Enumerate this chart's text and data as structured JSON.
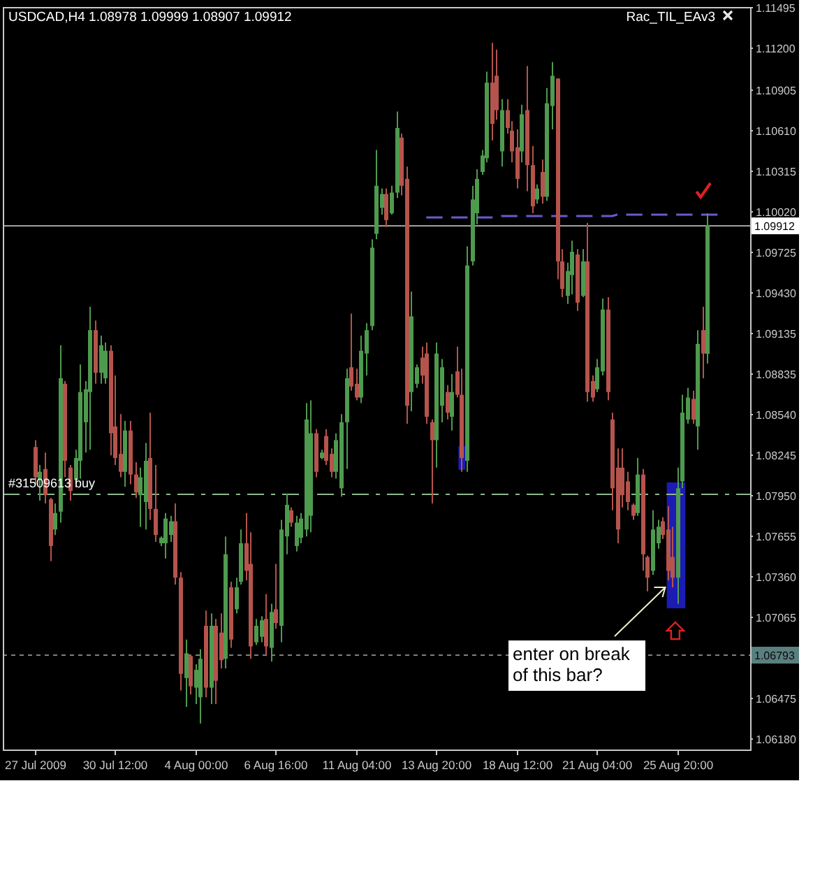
{
  "chart_data": {
    "type": "candlestick",
    "title": "USDCAD,H4 1.08978 1.09999 1.08907 1.09912",
    "annotations": [
      "Rac_TIL_EAv3",
      "enter on break of this bar?"
    ],
    "categories": [
      "27 Jul 2009",
      null,
      null,
      null,
      null,
      null,
      null,
      null,
      null,
      null,
      null,
      null,
      null,
      null,
      null,
      null,
      "30 Jul 12:00",
      null,
      null,
      null,
      null,
      null,
      null,
      null,
      null,
      null,
      null,
      null,
      null,
      null,
      null,
      null,
      "4 Aug 00:00",
      null,
      null,
      null,
      null,
      null,
      null,
      null,
      null,
      null,
      null,
      null,
      null,
      null,
      null,
      null,
      "6 Aug 16:00",
      null,
      null,
      null,
      null,
      null,
      null,
      null,
      null,
      null,
      null,
      null,
      null,
      null,
      null,
      null,
      "11 Aug 04:00",
      null,
      null,
      null,
      null,
      null,
      null,
      null,
      null,
      null,
      null,
      null,
      null,
      null,
      null,
      null,
      "13 Aug 20:00",
      null,
      null,
      null,
      null,
      null,
      null,
      null,
      null,
      null,
      null,
      null,
      null,
      null,
      null,
      null,
      "18 Aug 12:00",
      null,
      null,
      null,
      null,
      null,
      null,
      null,
      null,
      null,
      null,
      null,
      null,
      null,
      null,
      null,
      "21 Aug 04:00",
      null,
      null,
      null,
      null,
      null,
      null,
      null,
      null,
      null,
      null,
      null,
      null,
      null,
      null,
      null,
      "25 Aug 20:00",
      null,
      null,
      null,
      null,
      null,
      null,
      null,
      null,
      null,
      null,
      null,
      null,
      null,
      null
    ],
    "ohlc": [
      [
        1.083,
        1.0835,
        1.0803,
        1.0808
      ],
      [
        1.0806,
        1.0817,
        1.0791,
        1.0812
      ],
      [
        1.0814,
        1.0826,
        1.0789,
        1.0795
      ],
      [
        1.0792,
        1.0793,
        1.0747,
        1.0758
      ],
      [
        1.077,
        1.0789,
        1.0766,
        1.0782
      ],
      [
        1.0783,
        1.0904,
        1.0775,
        1.088
      ],
      [
        1.0876,
        1.0878,
        1.0808,
        1.082
      ],
      [
        1.0815,
        1.0817,
        1.0791,
        1.0798
      ],
      [
        1.0806,
        1.0828,
        1.0803,
        1.0822
      ],
      [
        1.082,
        1.089,
        1.0807,
        1.087
      ],
      [
        1.0848,
        1.0878,
        1.0826,
        1.0872
      ],
      [
        1.087,
        1.0932,
        1.0828,
        1.0915
      ],
      [
        1.0915,
        1.0922,
        1.0876,
        1.0884
      ],
      [
        1.0884,
        1.0911,
        1.0876,
        1.0904
      ],
      [
        1.088,
        1.0906,
        1.0876,
        1.09
      ],
      [
        1.09,
        1.0904,
        1.0824,
        1.084
      ],
      [
        1.0845,
        1.0882,
        1.0817,
        1.0822
      ],
      [
        1.0825,
        1.0854,
        1.0808,
        1.0812
      ],
      [
        1.0812,
        1.0849,
        1.0801,
        1.0842
      ],
      [
        1.0842,
        1.0849,
        1.0803,
        1.081
      ],
      [
        1.081,
        1.0819,
        1.0793,
        1.0797
      ],
      [
        1.0795,
        1.0815,
        1.0772,
        1.0808
      ],
      [
        1.079,
        1.0833,
        1.077,
        1.082
      ],
      [
        1.0822,
        1.0855,
        1.0777,
        1.0785
      ],
      [
        1.0785,
        1.0817,
        1.0761,
        1.0766
      ],
      [
        1.076,
        1.0765,
        1.0758,
        1.0764
      ],
      [
        1.076,
        1.0782,
        1.0749,
        1.0778
      ],
      [
        1.0766,
        1.078,
        1.0761,
        1.0776
      ],
      [
        1.0776,
        1.0789,
        1.073,
        1.0735
      ],
      [
        1.0735,
        1.0739,
        1.0653,
        1.0665
      ],
      [
        1.0662,
        1.069,
        1.0641,
        1.068
      ],
      [
        1.0678,
        1.0679,
        1.065,
        1.0656
      ],
      [
        1.0655,
        1.0672,
        1.0643,
        1.0668
      ],
      [
        1.0648,
        1.0683,
        1.0629,
        1.0676
      ],
      [
        1.07,
        1.0711,
        1.0648,
        1.0655
      ],
      [
        1.0655,
        1.0709,
        1.0643,
        1.07
      ],
      [
        1.07,
        1.0705,
        1.0643,
        1.066
      ],
      [
        1.0695,
        1.0709,
        1.0669,
        1.0675
      ],
      [
        1.0676,
        1.0765,
        1.0669,
        1.0752
      ],
      [
        1.0728,
        1.0732,
        1.0684,
        1.069
      ],
      [
        1.0712,
        1.0735,
        1.0709,
        1.0728
      ],
      [
        1.0732,
        1.077,
        1.073,
        1.076
      ],
      [
        1.076,
        1.0782,
        1.0733,
        1.074
      ],
      [
        1.0745,
        1.0768,
        1.0676,
        1.0685
      ],
      [
        1.0688,
        1.0705,
        1.0686,
        1.07
      ],
      [
        1.0692,
        1.0707,
        1.0688,
        1.0704
      ],
      [
        1.0705,
        1.0723,
        1.0679,
        1.0685
      ],
      [
        1.0684,
        1.0716,
        1.0674,
        1.071
      ],
      [
        1.0712,
        1.0745,
        1.0698,
        1.0702
      ],
      [
        1.07,
        1.0777,
        1.0688,
        1.077
      ],
      [
        1.0765,
        1.0796,
        1.0752,
        1.0788
      ],
      [
        1.0784,
        1.0786,
        1.0772,
        1.0775
      ],
      [
        1.0758,
        1.078,
        1.0754,
        1.0775
      ],
      [
        1.0764,
        1.0782,
        1.076,
        1.0778
      ],
      [
        1.077,
        1.0862,
        1.0765,
        1.085
      ],
      [
        1.078,
        1.0864,
        1.0768,
        1.084
      ],
      [
        1.084,
        1.0843,
        1.0808,
        1.0812
      ],
      [
        1.0822,
        1.0828,
        1.0821,
        1.0826
      ],
      [
        1.0838,
        1.0843,
        1.0817,
        1.082
      ],
      [
        1.0825,
        1.0829,
        1.0808,
        1.0812
      ],
      [
        1.0812,
        1.084,
        1.0807,
        1.0835
      ],
      [
        1.08,
        1.0854,
        1.0794,
        1.0848
      ],
      [
        1.0848,
        1.0887,
        1.0814,
        1.088
      ],
      [
        1.0888,
        1.0927,
        1.0871,
        1.0874
      ],
      [
        1.0876,
        1.0887,
        1.0864,
        1.0866
      ],
      [
        1.0866,
        1.0911,
        1.0862,
        1.09
      ],
      [
        1.0898,
        1.092,
        1.0882,
        1.0915
      ],
      [
        1.0918,
        1.0981,
        1.0915,
        1.0975
      ],
      [
        1.0985,
        1.1046,
        1.0981,
        1.102
      ],
      [
        1.1004,
        1.1018,
        1.0999,
        1.1014
      ],
      [
        1.1014,
        1.1018,
        1.099,
        1.0995
      ],
      [
        1.1,
        1.102,
        1.0999,
        1.1015
      ],
      [
        1.1015,
        1.1074,
        1.1011,
        1.1062
      ],
      [
        1.1055,
        1.1058,
        1.1013,
        1.102
      ],
      [
        1.1025,
        1.1034,
        1.0847,
        1.086
      ],
      [
        1.087,
        1.0943,
        1.0856,
        1.0925
      ],
      [
        1.0876,
        1.089,
        1.0873,
        1.0888
      ],
      [
        1.0895,
        1.0903,
        1.0876,
        1.0882
      ],
      [
        1.0898,
        1.0906,
        1.0847,
        1.0852
      ],
      [
        1.0848,
        1.085,
        1.0789,
        1.0835
      ],
      [
        1.0835,
        1.0906,
        1.0815,
        1.0898
      ],
      [
        1.086,
        1.0894,
        1.0848,
        1.0888
      ],
      [
        1.087,
        1.0875,
        1.085,
        1.0855
      ],
      [
        1.0852,
        1.0883,
        1.0842,
        1.087
      ],
      [
        1.0885,
        1.0903,
        1.0866,
        1.0868
      ],
      [
        1.0868,
        1.0887,
        1.0812,
        1.0822
      ],
      [
        1.082,
        1.0976,
        1.0812,
        1.0962
      ],
      [
        1.0965,
        1.102,
        1.0962,
        1.101
      ],
      [
        1.1,
        1.1032,
        1.0992,
        1.1025
      ],
      [
        1.103,
        1.1046,
        1.1028,
        1.1042
      ],
      [
        1.104,
        1.1103,
        1.1037,
        1.1095
      ],
      [
        1.1095,
        1.1124,
        1.1053,
        1.1065
      ],
      [
        1.11,
        1.1119,
        1.1068,
        1.1075
      ],
      [
        1.1045,
        1.1083,
        1.1034,
        1.1075
      ],
      [
        1.1075,
        1.1083,
        1.1058,
        1.1062
      ],
      [
        1.106,
        1.1067,
        1.1037,
        1.1045
      ],
      [
        1.1048,
        1.1061,
        1.1018,
        1.1025
      ],
      [
        1.1045,
        1.1079,
        1.1037,
        1.1072
      ],
      [
        1.1075,
        1.1107,
        1.1016,
        1.1035
      ],
      [
        1.1035,
        1.1049,
        1.1,
        1.1005
      ],
      [
        1.101,
        1.1021,
        1.1007,
        1.1018
      ],
      [
        1.103,
        1.1039,
        1.1007,
        1.1012
      ],
      [
        1.1012,
        1.1091,
        1.1009,
        1.108
      ],
      [
        1.1078,
        1.111,
        1.1061,
        1.11
      ],
      [
        1.1098,
        1.1098,
        1.0952,
        1.0965
      ],
      [
        1.0965,
        1.0974,
        1.0939,
        1.0945
      ],
      [
        1.094,
        1.0964,
        1.0934,
        1.0958
      ],
      [
        1.0955,
        1.098,
        1.0941,
        1.0972
      ],
      [
        1.097,
        1.0974,
        1.0929,
        1.0935
      ],
      [
        1.094,
        1.0974,
        1.0939,
        1.0965
      ],
      [
        1.0965,
        1.0993,
        1.0863,
        1.087
      ],
      [
        1.0878,
        1.0882,
        1.0863,
        1.0866
      ],
      [
        1.0872,
        1.0894,
        1.087,
        1.0888
      ],
      [
        1.0885,
        1.0938,
        1.0882,
        1.093
      ],
      [
        1.093,
        1.0939,
        1.0864,
        1.087
      ],
      [
        1.085,
        1.0855,
        1.0784,
        1.08
      ],
      [
        1.0815,
        1.0829,
        1.076,
        1.077
      ],
      [
        1.0815,
        1.0829,
        1.0786,
        1.0795
      ],
      [
        1.0805,
        1.0812,
        1.0784,
        1.079
      ],
      [
        1.0788,
        1.0789,
        1.0777,
        1.078
      ],
      [
        1.0782,
        1.0822,
        1.078,
        1.081
      ],
      [
        1.081,
        1.0814,
        1.074,
        1.0752
      ],
      [
        1.075,
        1.0751,
        1.0725,
        1.0735
      ],
      [
        1.074,
        1.0784,
        1.0737,
        1.077
      ],
      [
        1.076,
        1.0777,
        1.0756,
        1.0772
      ],
      [
        1.0776,
        1.0779,
        1.0763,
        1.0766
      ],
      [
        1.077,
        1.0787,
        1.0733,
        1.074
      ],
      [
        1.075,
        1.0772,
        1.0728,
        1.0735
      ],
      [
        1.0735,
        1.0815,
        1.0716,
        1.08
      ],
      [
        1.0805,
        1.0868,
        1.08,
        1.0855
      ],
      [
        1.085,
        1.0873,
        1.0847,
        1.0866
      ],
      [
        1.0865,
        1.0871,
        1.0847,
        1.085
      ],
      [
        1.0845,
        1.0915,
        1.0828,
        1.0905
      ],
      [
        1.0915,
        1.0932,
        1.088,
        1.0898
      ],
      [
        1.08978,
        1.09999,
        1.08907,
        1.09912
      ],
      null,
      null,
      null,
      null,
      null,
      null,
      null,
      null
    ],
    "colors": [
      "#b5544c",
      "#4e9a4e",
      "#b5544c",
      "#b5544c",
      "#4e9a4e",
      "#4e9a4e",
      "#b5544c",
      "#b5544c",
      "#4e9a4e",
      "#4e9a4e",
      "#4e9a4e",
      "#4e9a4e",
      "#b5544c",
      "#4e9a4e",
      "#4e9a4e",
      "#b5544c",
      "#b5544c",
      "#b5544c",
      "#4e9a4e",
      "#b5544c",
      "#b5544c",
      "#4e9a4e",
      "#4e9a4e",
      "#b5544c",
      "#b5544c",
      "#4e9a4e",
      "#4e9a4e",
      "#4e9a4e",
      "#b5544c",
      "#b5544c",
      "#4e9a4e",
      "#b5544c",
      "#4e9a4e",
      "#4e9a4e",
      "#b5544c",
      "#4e9a4e",
      "#b5544c",
      "#b5544c",
      "#4e9a4e",
      "#b5544c",
      "#4e9a4e",
      "#4e9a4e",
      "#b5544c",
      "#b5544c",
      "#4e9a4e",
      "#4e9a4e",
      "#b5544c",
      "#4e9a4e",
      "#b5544c",
      "#4e9a4e",
      "#4e9a4e",
      "#b5544c",
      "#4e9a4e",
      "#4e9a4e",
      "#4e9a4e",
      "#4e9a4e",
      "#b5544c",
      "#4e9a4e",
      "#b5544c",
      "#b5544c",
      "#4e9a4e",
      "#4e9a4e",
      "#4e9a4e",
      "#b5544c",
      "#b5544c",
      "#4e9a4e",
      "#4e9a4e",
      "#4e9a4e",
      "#4e9a4e",
      "#4e9a4e",
      "#b5544c",
      "#4e9a4e",
      "#4e9a4e",
      "#b5544c",
      "#b5544c",
      "#4e9a4e",
      "#4e9a4e",
      "#b5544c",
      "#b5544c",
      "#b5544c",
      "#4e9a4e",
      "#4e9a4e",
      "#b5544c",
      "#4e9a4e",
      "#b5544c",
      "#b5544c",
      "#4e9a4e",
      "#4e9a4e",
      "#4e9a4e",
      "#4e9a4e",
      "#4e9a4e",
      "#b5544c",
      "#b5544c",
      "#4e9a4e",
      "#b5544c",
      "#b5544c",
      "#b5544c",
      "#4e9a4e",
      "#b5544c",
      "#b5544c",
      "#4e9a4e",
      "#b5544c",
      "#4e9a4e",
      "#4e9a4e",
      "#b5544c",
      "#b5544c",
      "#4e9a4e",
      "#4e9a4e",
      "#b5544c",
      "#4e9a4e",
      "#b5544c",
      "#b5544c",
      "#4e9a4e",
      "#4e9a4e",
      "#b5544c",
      "#b5544c",
      "#b5544c",
      "#b5544c",
      "#b5544c",
      "#b5544c",
      "#4e9a4e",
      "#b5544c",
      "#b5544c",
      "#4e9a4e",
      "#4e9a4e",
      "#b5544c",
      "#b5544c",
      "#b5544c",
      "#4e9a4e",
      "#4e9a4e",
      "#4e9a4e",
      "#b5544c",
      "#4e9a4e",
      "#b5544c",
      "#4e9a4e",
      null,
      null,
      null,
      null,
      null,
      null,
      null,
      null
    ],
    "series": [
      {
        "type": "line",
        "color": "#6a5acd",
        "line_style": "dashed",
        "values": [
          null,
          null,
          null,
          null,
          null,
          null,
          null,
          null,
          null,
          null,
          null,
          null,
          null,
          null,
          null,
          null,
          null,
          null,
          null,
          null,
          null,
          null,
          null,
          null,
          null,
          null,
          null,
          null,
          null,
          null,
          null,
          null,
          null,
          null,
          null,
          null,
          null,
          null,
          null,
          null,
          null,
          null,
          null,
          null,
          null,
          null,
          null,
          null,
          null,
          null,
          null,
          null,
          null,
          null,
          null,
          null,
          null,
          null,
          null,
          null,
          null,
          null,
          null,
          null,
          null,
          null,
          null,
          null,
          null,
          null,
          null,
          null,
          null,
          null,
          null,
          null,
          null,
          null,
          1.0997,
          1.0997,
          1.0997,
          1.0997,
          1.0997,
          1.0997,
          1.0997,
          1.0997,
          1.0997,
          1.0997,
          1.0997,
          1.0997,
          1.0997,
          1.0997,
          1.0997,
          1.0998,
          1.0998,
          1.0998,
          1.0998,
          1.0998,
          1.0998,
          1.0998,
          1.0998,
          1.0998,
          1.0998,
          1.0998,
          1.0998,
          1.0998,
          1.0998,
          1.0998,
          1.0998,
          1.0998,
          1.0998,
          1.0998,
          1.0998,
          1.0998,
          1.0998,
          1.0998,
          1.0999,
          1.0999,
          1.0999,
          1.0999,
          1.0999,
          1.0999,
          1.0999,
          1.0999,
          1.0999,
          1.0999,
          1.0999,
          1.0999,
          1.0999,
          1.0999,
          1.0999,
          1.0999,
          1.0999,
          1.0999,
          1.0999,
          1.0999,
          1.0999,
          null,
          null,
          null,
          null,
          null,
          null
        ]
      }
    ],
    "ylim": [
      1.061,
      1.115
    ],
    "yticks": [
      {
        "value": 1.0618,
        "label": "1.06180"
      },
      1.06475,
      1.07065,
      {
        "value": 1.0736,
        "label": "1.07360"
      },
      1.07655,
      {
        "value": 1.0795,
        "label": "1.07950"
      },
      1.08245,
      {
        "value": 1.0854,
        "label": "1.08540"
      },
      1.08835,
      1.09135,
      {
        "value": 1.0943,
        "label": "1.09430"
      },
      1.09725,
      {
        "value": 1.1002,
        "label": "1.10020"
      },
      1.10315,
      {
        "value": 1.1061,
        "label": "1.10610"
      },
      1.10905,
      {
        "value": 1.112,
        "label": "1.11200"
      },
      1.11495
    ],
    "ref_lines": [
      {
        "axis": "y",
        "value": 1.09912,
        "label": "1.09912",
        "color": "#a0a0a0",
        "line_style": "solid"
      },
      {
        "axis": "y",
        "value": 1.0796,
        "label": "#31509613 buy",
        "color": "#8fb88f",
        "line_style": "dashed"
      },
      {
        "axis": "y",
        "value": 1.06793,
        "label": "1.06793",
        "color": "#808080",
        "line_style": "dotted"
      }
    ]
  }
}
